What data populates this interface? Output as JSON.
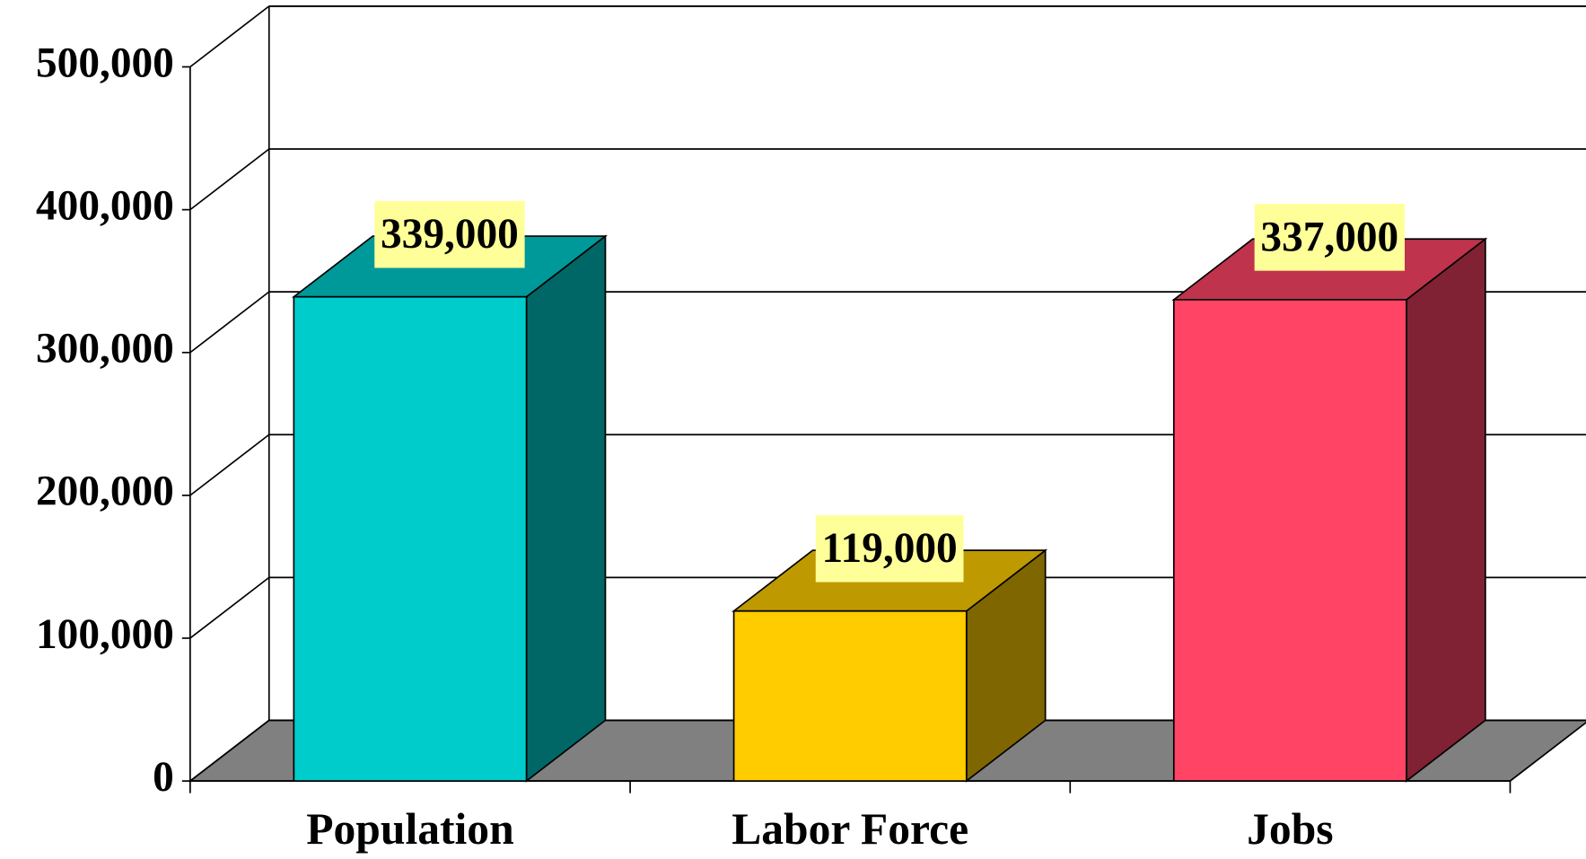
{
  "chart_data": {
    "type": "bar3d",
    "categories": [
      "Population",
      "Labor Force",
      "Jobs"
    ],
    "values": [
      339000,
      119000,
      337000
    ],
    "value_labels": [
      "339,000",
      "119,000",
      "337,000"
    ],
    "colors": [
      "#00cccc",
      "#ffcc00",
      "#ff4466"
    ],
    "ylim": [
      0,
      500000
    ],
    "yticks": [
      0,
      {
        "value": 100000,
        "label": "100,000"
      },
      {
        "value": 200000,
        "label": "200,000"
      },
      {
        "value": 300000,
        "label": "300,000"
      },
      {
        "value": 400000,
        "label": "400,000"
      },
      {
        "value": 500000,
        "label": "500,000"
      }
    ],
    "grid": true
  }
}
